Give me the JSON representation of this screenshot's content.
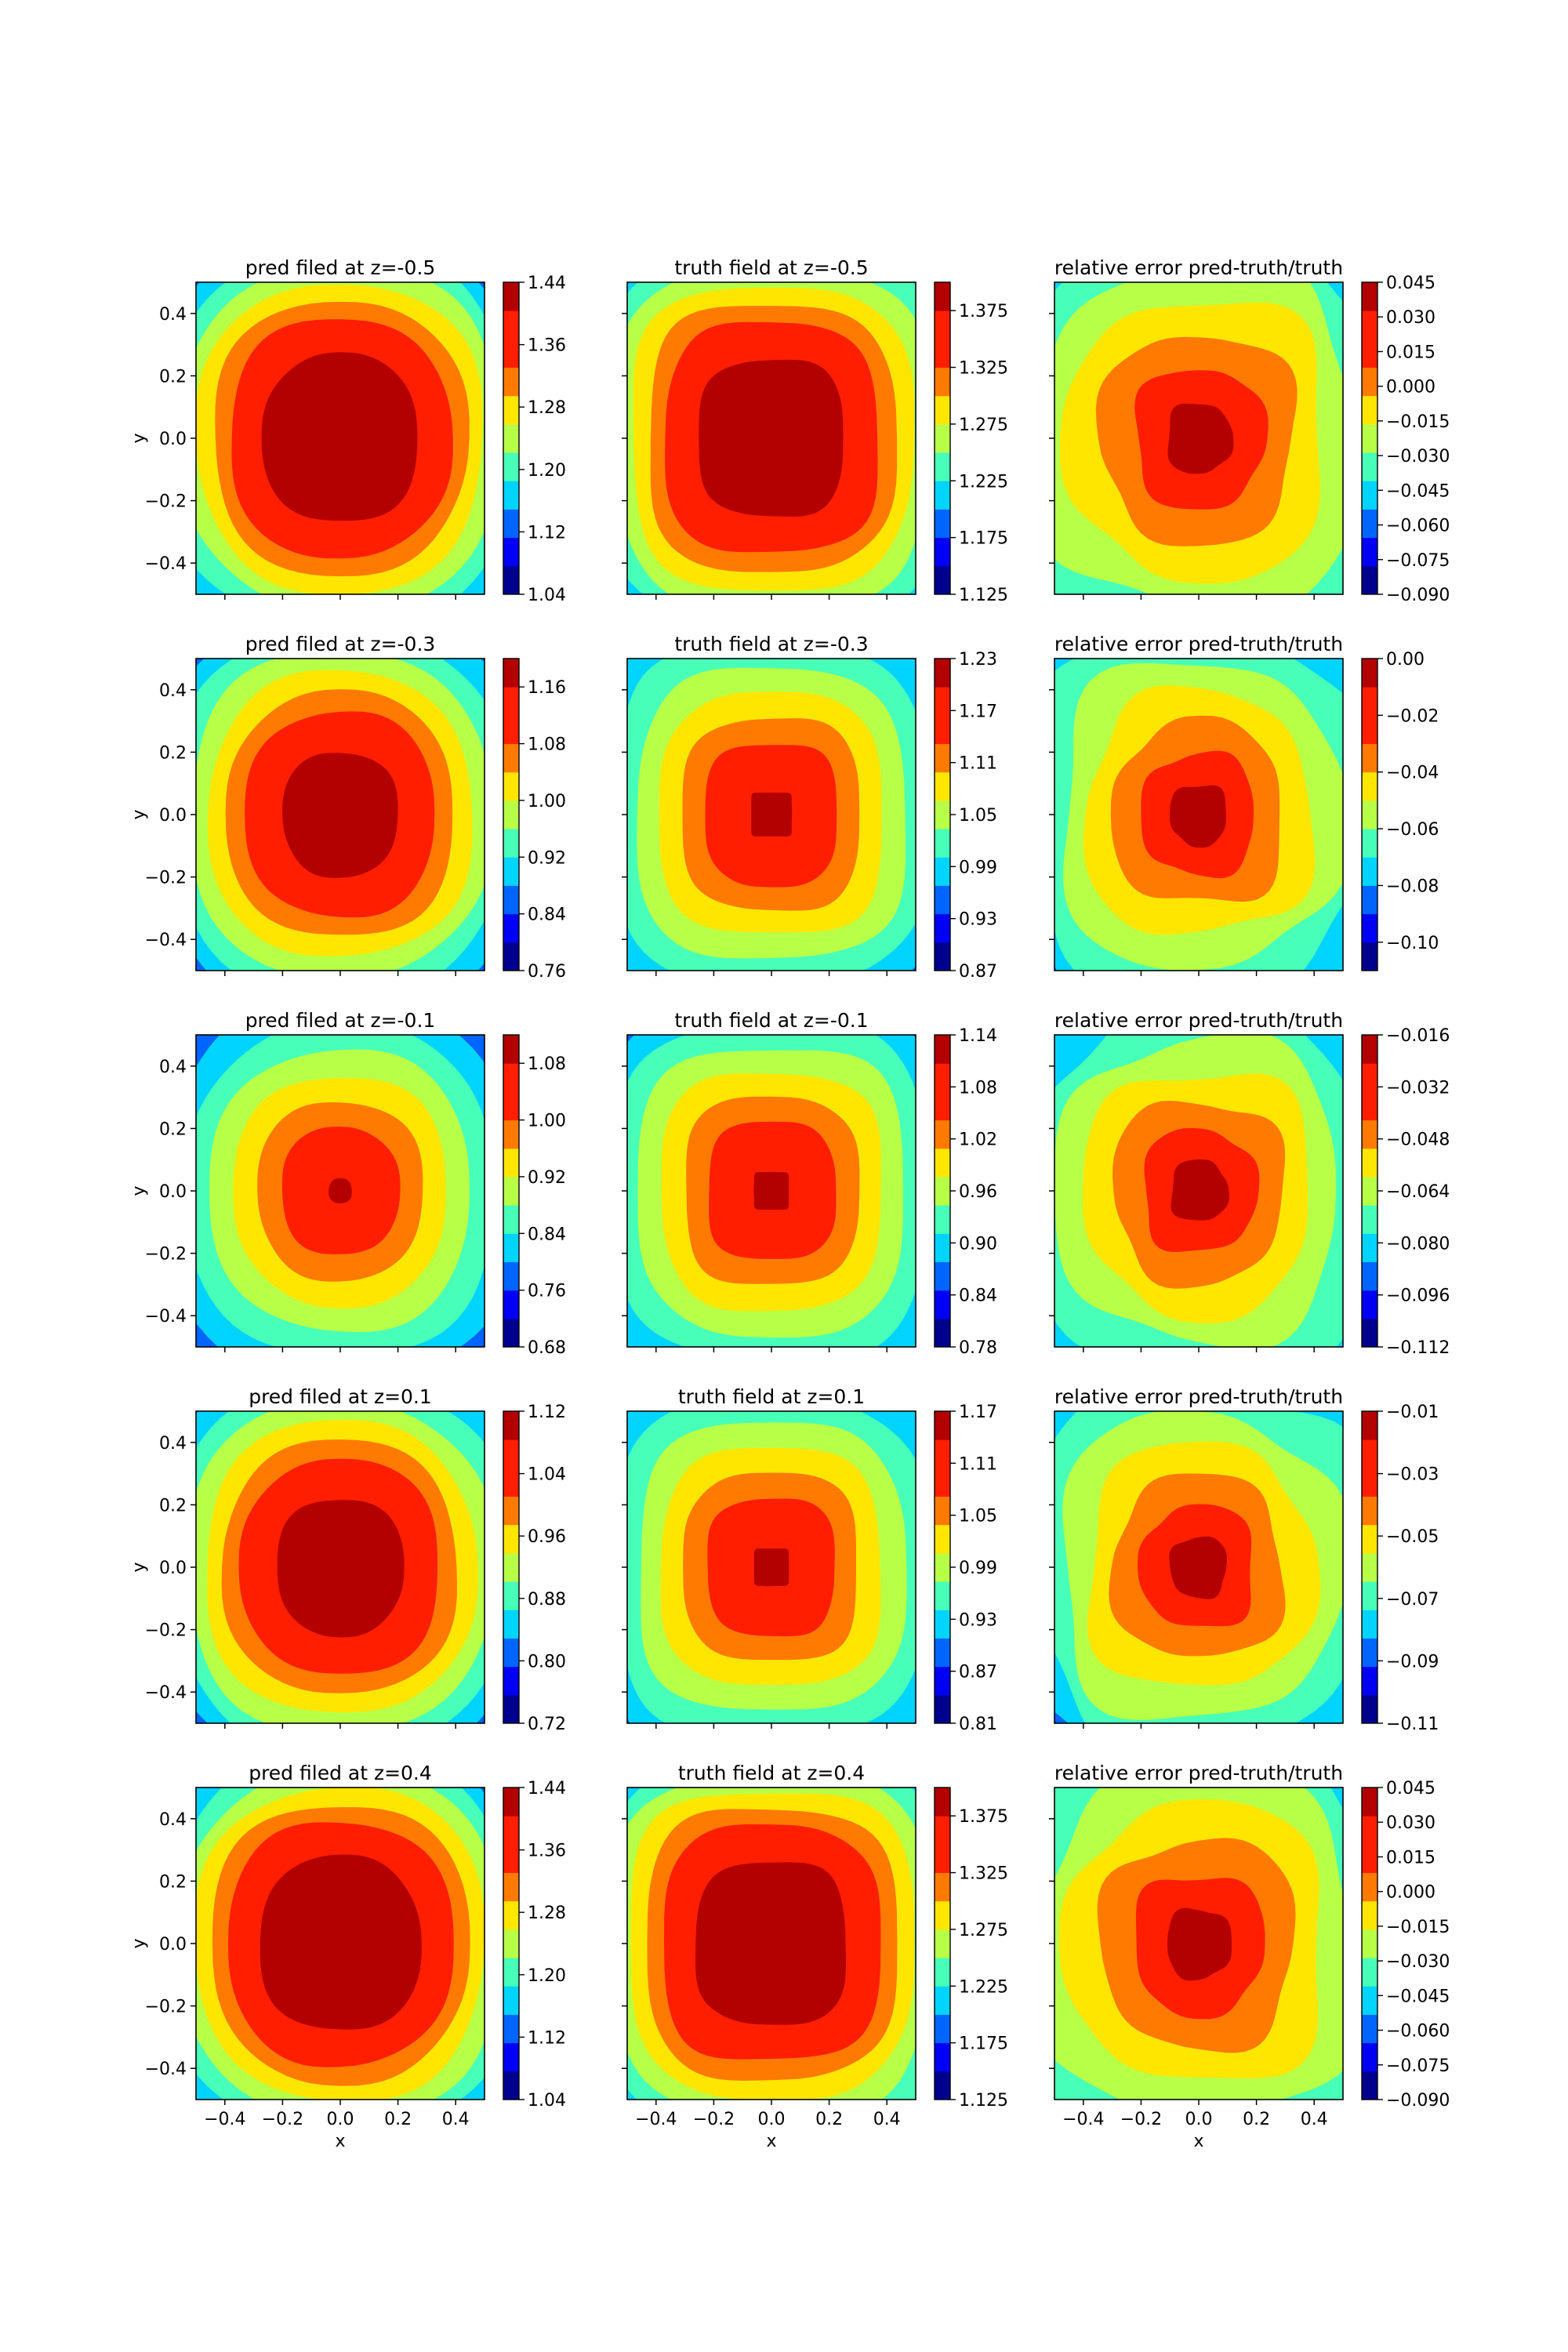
{
  "figure": {
    "xlabel": "x",
    "ylabel": "y",
    "x_ticks": [
      -0.4,
      -0.2,
      0.0,
      0.2,
      0.4
    ],
    "y_ticks": [
      0.4,
      0.2,
      0.0,
      -0.2,
      -0.4
    ],
    "extent": [
      -0.5,
      0.5,
      -0.5,
      0.5
    ],
    "colormap": "jet",
    "levels": 11,
    "band_colors": [
      "#00008f",
      "#0000f5",
      "#0064ff",
      "#00d4ff",
      "#47ffb8",
      "#b8ff47",
      "#ffe600",
      "#ff7a00",
      "#ff1e00",
      "#ff1e00",
      "#b30000"
    ]
  },
  "chart_data": [
    {
      "type": "contour",
      "title": "pred filed at z=-0.5",
      "field": "pred",
      "peak_radius": 0.27,
      "colorbar_ticks": [
        "1.44",
        "1.36",
        "1.28",
        "1.20",
        "1.12",
        "1.04"
      ],
      "clim": [
        1.04,
        1.44
      ],
      "show_ylabel": true,
      "show_xlabel": false
    },
    {
      "type": "contour",
      "title": "truth field at z=-0.5",
      "field": "truth",
      "peak_radius": 0.25,
      "colorbar_ticks": [
        "1.375",
        "1.325",
        "1.275",
        "1.225",
        "1.175",
        "1.125"
      ],
      "clim": [
        1.125,
        1.4
      ],
      "show_ylabel": false,
      "show_xlabel": false
    },
    {
      "type": "contour",
      "title": "relative error pred-truth/truth",
      "field": "error",
      "error_high_levels": 2,
      "colorbar_ticks": [
        "0.045",
        "0.030",
        "0.015",
        "0.000",
        "−0.015",
        "−0.030",
        "−0.045",
        "−0.060",
        "−0.075",
        "−0.090"
      ],
      "clim": [
        -0.09,
        0.045
      ],
      "show_ylabel": false,
      "show_xlabel": false
    },
    {
      "type": "contour",
      "title": "pred filed at z=-0.3",
      "field": "pred",
      "peak_radius": 0.2,
      "colorbar_ticks": [
        "1.16",
        "1.08",
        "1.00",
        "0.92",
        "0.84",
        "0.76"
      ],
      "clim": [
        0.76,
        1.2
      ],
      "show_ylabel": true,
      "show_xlabel": false
    },
    {
      "type": "contour",
      "title": "truth field at z=-0.3",
      "field": "truth",
      "peak_radius": 0.07,
      "colorbar_ticks": [
        "1.23",
        "1.17",
        "1.11",
        "1.05",
        "0.99",
        "0.93",
        "0.87"
      ],
      "clim": [
        0.87,
        1.23
      ],
      "show_ylabel": false,
      "show_xlabel": false
    },
    {
      "type": "contour",
      "title": "relative error pred-truth/truth",
      "field": "error",
      "error_high_levels": 3,
      "colorbar_ticks": [
        "0.00",
        "−0.02",
        "−0.04",
        "−0.06",
        "−0.08",
        "−0.10"
      ],
      "clim": [
        -0.11,
        0.0
      ],
      "show_ylabel": false,
      "show_xlabel": false
    },
    {
      "type": "contour",
      "title": "pred filed at z=-0.1",
      "field": "pred",
      "peak_radius": 0.04,
      "colorbar_ticks": [
        "1.08",
        "1.00",
        "0.92",
        "0.84",
        "0.76",
        "0.68"
      ],
      "clim": [
        0.68,
        1.12
      ],
      "show_ylabel": true,
      "show_xlabel": false
    },
    {
      "type": "contour",
      "title": "truth field at z=-0.1",
      "field": "truth",
      "peak_radius": 0.06,
      "colorbar_ticks": [
        "1.14",
        "1.08",
        "1.02",
        "0.96",
        "0.90",
        "0.84",
        "0.78"
      ],
      "clim": [
        0.78,
        1.14
      ],
      "show_ylabel": false,
      "show_xlabel": false
    },
    {
      "type": "contour",
      "title": "relative error pred-truth/truth",
      "field": "error",
      "error_high_levels": 4,
      "colorbar_ticks": [
        "−0.016",
        "−0.032",
        "−0.048",
        "−0.064",
        "−0.080",
        "−0.096",
        "−0.112"
      ],
      "clim": [
        -0.112,
        -0.016
      ],
      "show_ylabel": false,
      "show_xlabel": false
    },
    {
      "type": "contour",
      "title": "pred filed at z=0.1",
      "field": "pred",
      "peak_radius": 0.22,
      "colorbar_ticks": [
        "1.12",
        "1.04",
        "0.96",
        "0.88",
        "0.80",
        "0.72"
      ],
      "clim": [
        0.72,
        1.12
      ],
      "show_ylabel": true,
      "show_xlabel": false
    },
    {
      "type": "contour",
      "title": "truth field at z=0.1",
      "field": "truth",
      "peak_radius": 0.06,
      "colorbar_ticks": [
        "1.17",
        "1.11",
        "1.05",
        "0.99",
        "0.93",
        "0.87",
        "0.81"
      ],
      "clim": [
        0.81,
        1.17
      ],
      "show_ylabel": false,
      "show_xlabel": false
    },
    {
      "type": "contour",
      "title": "relative error pred-truth/truth",
      "field": "error",
      "error_high_levels": 4,
      "colorbar_ticks": [
        "−0.01",
        "−0.03",
        "−0.05",
        "−0.07",
        "−0.09",
        "−0.11"
      ],
      "clim": [
        -0.11,
        -0.01
      ],
      "show_ylabel": false,
      "show_xlabel": false
    },
    {
      "type": "contour",
      "title": "pred filed at z=0.4",
      "field": "pred",
      "peak_radius": 0.28,
      "colorbar_ticks": [
        "1.44",
        "1.36",
        "1.28",
        "1.20",
        "1.12",
        "1.04"
      ],
      "clim": [
        1.04,
        1.44
      ],
      "show_ylabel": true,
      "show_xlabel": true
    },
    {
      "type": "contour",
      "title": "truth field at z=0.4",
      "field": "truth",
      "peak_radius": 0.26,
      "colorbar_ticks": [
        "1.375",
        "1.325",
        "1.275",
        "1.225",
        "1.175",
        "1.125"
      ],
      "clim": [
        1.125,
        1.4
      ],
      "show_ylabel": false,
      "show_xlabel": true
    },
    {
      "type": "contour",
      "title": "relative error pred-truth/truth",
      "field": "error",
      "error_high_levels": 2,
      "colorbar_ticks": [
        "0.045",
        "0.030",
        "0.015",
        "0.000",
        "−0.015",
        "−0.030",
        "−0.045",
        "−0.060",
        "−0.075",
        "−0.090"
      ],
      "clim": [
        -0.09,
        0.045
      ],
      "show_ylabel": false,
      "show_xlabel": true
    }
  ]
}
